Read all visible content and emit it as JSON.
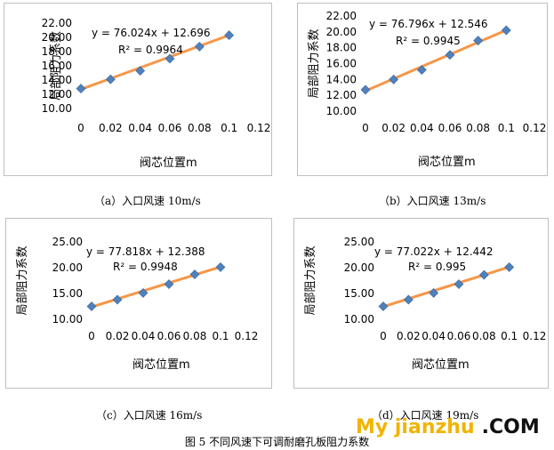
{
  "chart_data": [
    {
      "type": "scatter",
      "xlabel": "阀芯位置m",
      "ylabel": "局部阻力系数",
      "xticks": [
        "0",
        "0.02",
        "0.04",
        "0.06",
        "0.08",
        "0.1",
        "0.12"
      ],
      "yticks": [
        "10.00",
        "12.00",
        "14.00",
        "16.00",
        "18.00",
        "20.00",
        "22.00"
      ],
      "xlim": [
        0,
        0.12
      ],
      "ylim": [
        10,
        22
      ],
      "x": [
        0,
        0.02,
        0.04,
        0.06,
        0.08,
        0.1
      ],
      "y": [
        12.8,
        14.1,
        15.3,
        17.0,
        18.7,
        20.3
      ],
      "trendline": {
        "slope": 76.024,
        "intercept": 12.696
      },
      "equation": "y = 76.024x + 12.696",
      "r2": "R² = 0.9964",
      "caption": "（a）入口风速 10m/s"
    },
    {
      "type": "scatter",
      "xlabel": "阀芯位置m",
      "ylabel": "局部阻力系数",
      "xticks": [
        "0",
        "0.02",
        "0.04",
        "0.06",
        "0.08",
        "0.1",
        "0.12"
      ],
      "yticks": [
        "10.00",
        "12.00",
        "14.00",
        "16.00",
        "18.00",
        "20.00",
        "22.00"
      ],
      "xlim": [
        0,
        0.12
      ],
      "ylim": [
        10,
        22
      ],
      "x": [
        0,
        0.02,
        0.04,
        0.06,
        0.08,
        0.1
      ],
      "y": [
        12.7,
        14.0,
        15.2,
        17.1,
        18.9,
        20.2
      ],
      "trendline": {
        "slope": 76.796,
        "intercept": 12.546
      },
      "equation": "y = 76.796x + 12.546",
      "r2": "R² = 0.9945",
      "caption": "（b）入口风速 13m/s"
    },
    {
      "type": "scatter",
      "xlabel": "阀芯位置m",
      "ylabel": "局部阻力系数",
      "xticks": [
        "0",
        "0.02",
        "0.04",
        "0.06",
        "0.08",
        "0.1",
        "0.12"
      ],
      "yticks": [
        "10.00",
        "15.00",
        "20.00",
        "25.00"
      ],
      "xlim": [
        0,
        0.12
      ],
      "ylim": [
        10,
        25
      ],
      "x": [
        0,
        0.02,
        0.04,
        0.06,
        0.08,
        0.1
      ],
      "y": [
        12.5,
        13.8,
        15.1,
        16.8,
        18.7,
        20.1
      ],
      "trendline": {
        "slope": 77.818,
        "intercept": 12.388
      },
      "equation": "y = 77.818x + 12.388",
      "r2": "R² = 0.9948",
      "caption": "（c）入口风速 16m/s"
    },
    {
      "type": "scatter",
      "xlabel": "阀芯位置m",
      "ylabel": "局部阻力系数",
      "xticks": [
        "0",
        "0.02",
        "0.04",
        "0.06",
        "0.08",
        "0.1",
        "0.12"
      ],
      "yticks": [
        "10.00",
        "15.00",
        "20.00",
        "25.00"
      ],
      "xlim": [
        0,
        0.12
      ],
      "ylim": [
        10,
        25
      ],
      "x": [
        0,
        0.02,
        0.04,
        0.06,
        0.08,
        0.1
      ],
      "y": [
        12.5,
        13.8,
        15.1,
        16.8,
        18.6,
        20.1
      ],
      "trendline": {
        "slope": 77.022,
        "intercept": 12.442
      },
      "equation": "y = 77.022x + 12.442",
      "r2": "R² = 0.995",
      "caption": "（d）入口风速 19m/s"
    }
  ],
  "figure_caption": "图 5  不同风速下可调耐磨孔板阻力系数",
  "watermark": {
    "site": "My jianzhu",
    "tld": ".COM"
  },
  "colors": {
    "marker": "#4f81bd",
    "trendline": "#f79646"
  }
}
